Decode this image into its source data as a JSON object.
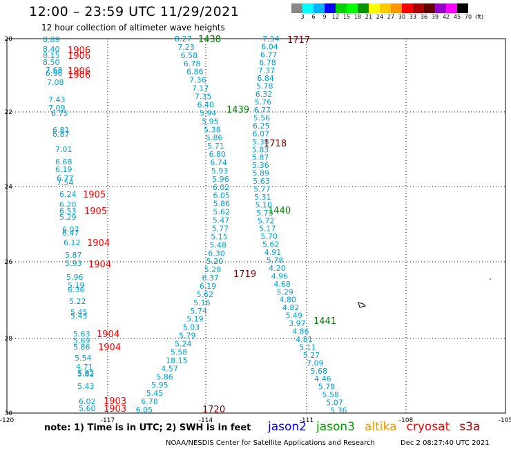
{
  "header": {
    "title": "12:00 – 23:59 UTC 11/29/2021",
    "subtitle": "12 hour collection of altimeter wave heights"
  },
  "legend": {
    "ticks": [
      "3",
      "6",
      "9",
      "12",
      "15",
      "18",
      "21",
      "24",
      "27",
      "30",
      "33",
      "36",
      "39",
      "42",
      "45",
      "70",
      "(ft)"
    ],
    "colors": [
      "#888888",
      "#00ffff",
      "#00b4ff",
      "#0000ff",
      "#00d200",
      "#00ff00",
      "#009600",
      "#ffff00",
      "#ffc800",
      "#ff9600",
      "#ff0000",
      "#aa0000",
      "#640000",
      "#9600c8",
      "#ff00ff",
      "#000000"
    ]
  },
  "axes": {
    "lon_ticks": [
      "-120",
      "-117",
      "-114",
      "-111",
      "-108",
      "-105"
    ],
    "lat_ticks": [
      "20",
      "22",
      "24",
      "26",
      "28",
      "30"
    ]
  },
  "track_colors": {
    "value": "#00a0d2",
    "jason3": "#008000",
    "cryosat": "#7a0000",
    "s3a": "#ff0000"
  },
  "times": [
    {
      "text": "1438",
      "sat": "jason3"
    },
    {
      "text": "1439",
      "sat": "jason3"
    },
    {
      "text": "1440",
      "sat": "jason3"
    },
    {
      "text": "1441",
      "sat": "jason3"
    },
    {
      "text": "1717",
      "sat": "cryosat"
    },
    {
      "text": "1718",
      "sat": "cryosat"
    },
    {
      "text": "1719",
      "sat": "cryosat"
    },
    {
      "text": "1720",
      "sat": "cryosat"
    },
    {
      "text": "1906",
      "sat": "s3a"
    },
    {
      "text": "1906",
      "sat": "s3a"
    },
    {
      "text": "1906",
      "sat": "s3a"
    },
    {
      "text": "1906",
      "sat": "s3a"
    },
    {
      "text": "1905",
      "sat": "s3a"
    },
    {
      "text": "1905",
      "sat": "s3a"
    },
    {
      "text": "1904",
      "sat": "s3a"
    },
    {
      "text": "1904",
      "sat": "s3a"
    },
    {
      "text": "1904",
      "sat": "s3a"
    },
    {
      "text": "1904",
      "sat": "s3a"
    },
    {
      "text": "1903",
      "sat": "s3a"
    },
    {
      "text": "1903",
      "sat": "s3a"
    }
  ],
  "tracks": {
    "s3a_values": [
      "8.89",
      "8.40",
      "8.15",
      "8.50",
      "7.68",
      "6.96",
      "7.08",
      "7.43",
      "7.09",
      "6.75",
      "6.81",
      "6.87",
      "7.01",
      "6.68",
      "6.19",
      "6.77",
      "7.54",
      "6.24",
      "6.20",
      "6.53",
      "5.29",
      "6.07",
      "6.47",
      "6.12",
      "5.87",
      "5.93",
      "5.96",
      "5.19",
      "6.36",
      "5.22",
      "5.45",
      "5.43",
      "5.63",
      "5.69",
      "5.86",
      "5.54",
      "4.71",
      "5.82",
      "5.82",
      "5.43",
      "6.02",
      "5.60"
    ],
    "cryosat_values": [
      "8.27",
      "7.23",
      "6.58",
      "6.78",
      "6.86",
      "7.36",
      "7.17",
      "7.35",
      "6.40",
      "5.94",
      "5.95",
      "5.38",
      "5.86",
      "5.71",
      "6.80",
      "6.74",
      "5.93",
      "5.96",
      "6.02",
      "6.05",
      "5.86",
      "5.62",
      "5.47",
      "5.77",
      "5.15",
      "5.48",
      "6.30",
      "5.20",
      "5.28",
      "6.37",
      "6.19",
      "5.62",
      "5.16",
      "5.74",
      "5.19",
      "5.03",
      "5.79",
      "5.24",
      "5.58",
      "18.15",
      "4.57",
      "5.86",
      "5.95",
      "5.45",
      "6.78",
      "6.05"
    ],
    "jason3_values": [
      "7.34",
      "6.04",
      "6.77",
      "6.78",
      "7.37",
      "6.84",
      "5.78",
      "6.32",
      "5.76",
      "6.77",
      "5.56",
      "6.25",
      "6.07",
      "5.38",
      "5.83",
      "5.87",
      "5.36",
      "5.89",
      "5.63",
      "5.77",
      "5.31",
      "5.10",
      "5.73",
      "5.72",
      "5.17",
      "5.70",
      "5.62",
      "4.91",
      "5.78",
      "4.20",
      "4.96",
      "4.68",
      "5.29",
      "4.80",
      "4.82",
      "5.49",
      "3.97",
      "4.86",
      "4.81",
      "5.11",
      "5.27",
      "7.09",
      "5.68",
      "4.46",
      "5.78",
      "5.58",
      "5.07",
      "5.36"
    ]
  },
  "footer": {
    "note": "note:  1) Time is in UTC;  2) SWH is in feet",
    "satellites": [
      {
        "name": "jason2",
        "color": "#0000ff"
      },
      {
        "name": "jason3",
        "color": "#00a000"
      },
      {
        "name": "altika",
        "color": "#ff9600"
      },
      {
        "name": "cryosat",
        "color": "#ff0000"
      },
      {
        "name": "s3a",
        "color": "#aa0000"
      }
    ],
    "org": "NOAA/NESDIS Center for Satellite Applications and Research",
    "timestamp": "Dec  2 08:27:40 UTC 2021"
  }
}
